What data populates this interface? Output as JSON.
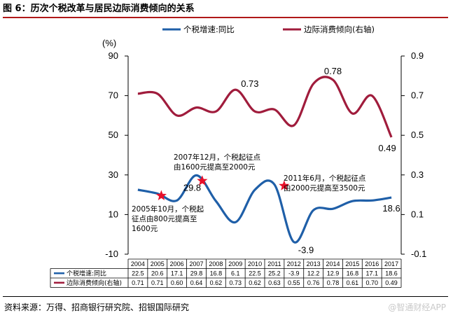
{
  "header": {
    "title": "图 6：历次个税改革与居民边际消费倾向的关系"
  },
  "footer": {
    "source": "资料来源：万得、招商银行研究院、招银国际研究",
    "watermark": "@智通财经APP"
  },
  "chart_data": {
    "type": "line",
    "categories": [
      "2004",
      "2005",
      "2006",
      "2007",
      "2008",
      "2009",
      "2010",
      "2011",
      "2012",
      "2013",
      "2014",
      "2015",
      "2016",
      "2017"
    ],
    "series": [
      {
        "name": "个税增速:同比",
        "axis": "left",
        "color": "#1f5fa8",
        "values": [
          22.5,
          20.6,
          17.1,
          29.8,
          16.8,
          6.1,
          22.5,
          25.2,
          -3.9,
          12.2,
          12.9,
          16.8,
          17.1,
          18.6
        ],
        "table_text": [
          "22.5",
          "20.6",
          "17.1",
          "29.8",
          "16.8",
          "6.1",
          "22.5",
          "25.2",
          "-3.9",
          "12.2",
          "12.9",
          "16.8",
          "17.1",
          "18.6"
        ]
      },
      {
        "name": "边际消费倾向(右轴)",
        "axis": "right",
        "color": "#a01c3c",
        "values": [
          0.71,
          0.71,
          0.6,
          0.64,
          0.62,
          0.73,
          0.62,
          0.63,
          0.55,
          0.76,
          0.78,
          0.61,
          0.7,
          0.49
        ],
        "table_text": [
          "0.71",
          "0.71",
          "0.60",
          "0.64",
          "0.62",
          "0.73",
          "0.62",
          "0.63",
          "0.55",
          "0.76",
          "0.78",
          "0.61",
          "0.70",
          "0.49"
        ]
      }
    ],
    "left_axis": {
      "unit_label": "(%)",
      "range": [
        -10,
        90
      ],
      "ticks": [
        90,
        70,
        50,
        30,
        10,
        -10
      ],
      "tick_labels": [
        "90",
        "70",
        "50",
        "30",
        "10",
        "-10"
      ]
    },
    "right_axis": {
      "range": [
        -0.1,
        0.9
      ],
      "ticks": [
        0.9,
        0.7,
        0.5,
        0.3,
        0.1,
        -0.1
      ],
      "tick_labels": [
        "0.9",
        "0.7",
        "0.5",
        "0.3",
        "0.1",
        "-0.1"
      ]
    },
    "data_labels": [
      {
        "series": 0,
        "index": 3,
        "text": "29.8"
      },
      {
        "series": 0,
        "index": 8,
        "text": "-3.9"
      },
      {
        "series": 0,
        "index": 13,
        "text": "18.6"
      },
      {
        "series": 1,
        "index": 5,
        "text": "0.73"
      },
      {
        "series": 1,
        "index": 10,
        "text": "0.78"
      },
      {
        "series": 1,
        "index": 13,
        "text": "0.49"
      }
    ],
    "events": [
      {
        "position": 1.2,
        "value": 19.5,
        "lines": [
          "2005年10月，个税起",
          "征点由800元提高至",
          "1600元"
        ]
      },
      {
        "position": 3.3,
        "value": 27.0,
        "lines": [
          "2007年12月，个税起征点",
          "由1600元提高至2000元"
        ]
      },
      {
        "position": 7.5,
        "value": 24.5,
        "lines": [
          "2011年6月，个税起征点",
          "由2000元提高至3500元"
        ]
      }
    ],
    "grid": false,
    "legend": "top"
  }
}
